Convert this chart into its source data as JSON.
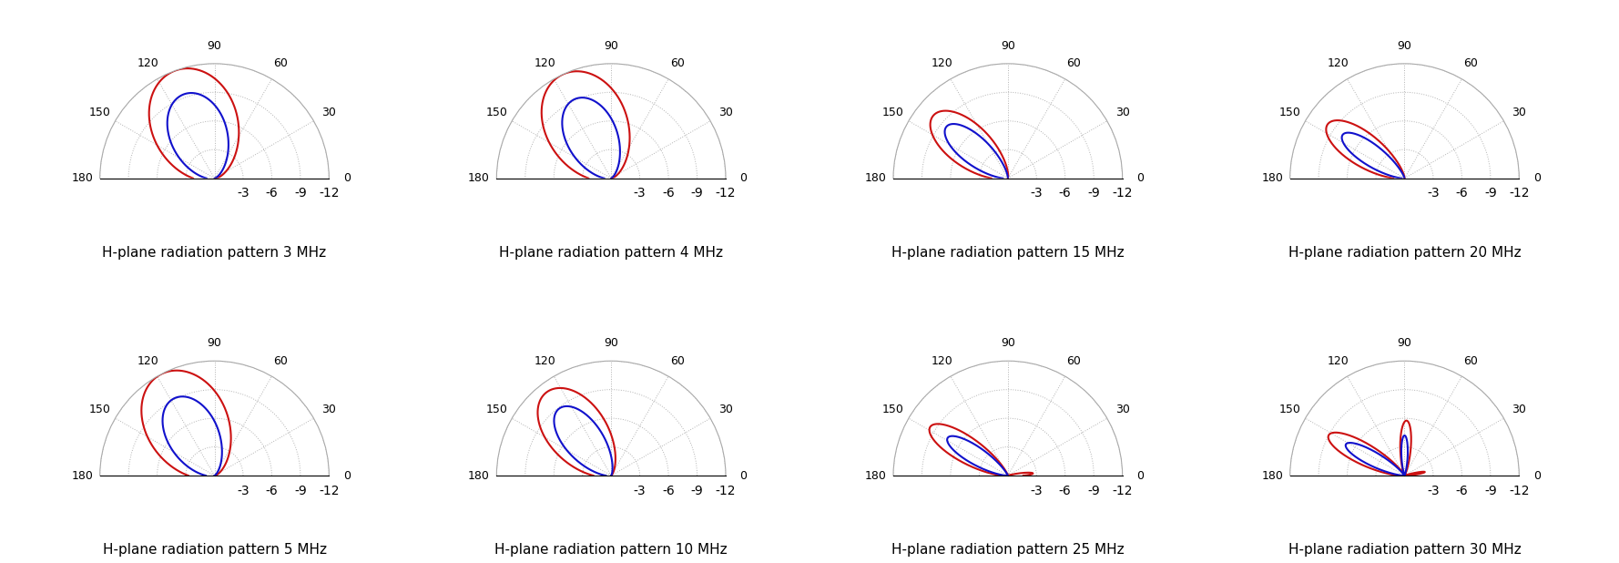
{
  "plots": [
    {
      "title": "H-plane radiation pattern 3 MHz",
      "patterns": [
        {
          "color": "#cc1111",
          "peak_deg": 110,
          "hpbw_deg": 90,
          "scale": 1.0,
          "lobes": []
        },
        {
          "color": "#1111cc",
          "peak_deg": 110,
          "hpbw_deg": 75,
          "scale": 0.78,
          "lobes": []
        }
      ]
    },
    {
      "title": "H-plane radiation pattern 4 MHz",
      "patterns": [
        {
          "color": "#cc1111",
          "peak_deg": 115,
          "hpbw_deg": 85,
          "scale": 1.0,
          "lobes": []
        },
        {
          "color": "#1111cc",
          "peak_deg": 115,
          "hpbw_deg": 68,
          "scale": 0.76,
          "lobes": []
        }
      ]
    },
    {
      "title": "H-plane radiation pattern 15 MHz",
      "patterns": [
        {
          "color": "#cc1111",
          "peak_deg": 140,
          "hpbw_deg": 50,
          "scale": 0.85,
          "lobes": []
        },
        {
          "color": "#1111cc",
          "peak_deg": 140,
          "hpbw_deg": 40,
          "scale": 0.7,
          "lobes": []
        }
      ]
    },
    {
      "title": "H-plane radiation pattern 20 MHz",
      "patterns": [
        {
          "color": "#cc1111",
          "peak_deg": 145,
          "hpbw_deg": 40,
          "scale": 0.82,
          "lobes": []
        },
        {
          "color": "#1111cc",
          "peak_deg": 145,
          "hpbw_deg": 32,
          "scale": 0.66,
          "lobes": []
        }
      ]
    },
    {
      "title": "H-plane radiation pattern 5 MHz",
      "patterns": [
        {
          "color": "#cc1111",
          "peak_deg": 118,
          "hpbw_deg": 85,
          "scale": 1.0,
          "lobes": []
        },
        {
          "color": "#1111cc",
          "peak_deg": 118,
          "hpbw_deg": 68,
          "scale": 0.76,
          "lobes": []
        }
      ]
    },
    {
      "title": "H-plane radiation pattern 10 MHz",
      "patterns": [
        {
          "color": "#cc1111",
          "peak_deg": 128,
          "hpbw_deg": 65,
          "scale": 0.92,
          "lobes": []
        },
        {
          "color": "#1111cc",
          "peak_deg": 128,
          "hpbw_deg": 52,
          "scale": 0.74,
          "lobes": []
        }
      ]
    },
    {
      "title": "H-plane radiation pattern 25 MHz",
      "patterns": [
        {
          "color": "#cc1111",
          "peak_deg": 148,
          "hpbw_deg": 32,
          "scale": 0.8,
          "lobes": [
            {
              "peak_deg": 5,
              "hpbw_deg": 12,
              "scale": 0.22
            }
          ]
        },
        {
          "color": "#1111cc",
          "peak_deg": 148,
          "hpbw_deg": 28,
          "scale": 0.62,
          "lobes": []
        }
      ]
    },
    {
      "title": "H-plane radiation pattern 30 MHz",
      "patterns": [
        {
          "color": "#cc1111",
          "peak_deg": 152,
          "hpbw_deg": 28,
          "scale": 0.75,
          "lobes": [
            {
              "peak_deg": 88,
              "hpbw_deg": 22,
              "scale": 0.48
            },
            {
              "peak_deg": 10,
              "hpbw_deg": 10,
              "scale": 0.18
            }
          ]
        },
        {
          "color": "#1111cc",
          "peak_deg": 152,
          "hpbw_deg": 24,
          "scale": 0.58,
          "lobes": [
            {
              "peak_deg": 90,
              "hpbw_deg": 18,
              "scale": 0.35
            }
          ]
        }
      ]
    }
  ],
  "rmax": 12,
  "rticks": [
    3,
    6,
    9,
    12
  ],
  "rlabels": [
    "-3",
    "-6",
    "-9",
    "-12"
  ],
  "theta_ticks_deg": [
    0,
    30,
    60,
    90,
    120,
    150,
    180
  ],
  "grid_color": "#aaaaaa",
  "title_fontsize": 11,
  "tick_fontsize": 9,
  "figsize": [
    17.78,
    6.18
  ],
  "dpi": 100
}
